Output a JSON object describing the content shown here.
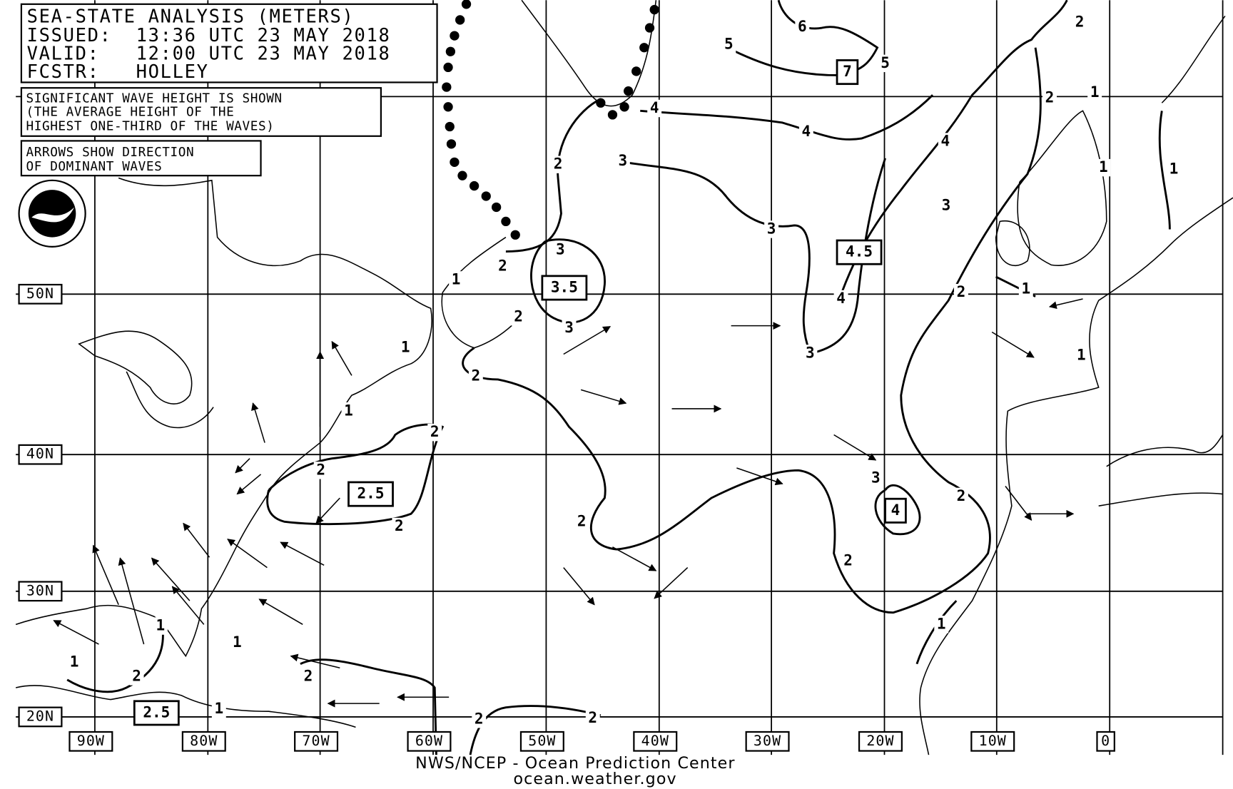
{
  "header": {
    "lines": [
      "SEA-STATE ANALYSIS (METERS)",
      "ISSUED:  13:36 UTC 23 MAY 2018",
      "VALID:   12:00 UTC 23 MAY 2018",
      "FCSTR:   HOLLEY"
    ]
  },
  "notes": {
    "wave_height": [
      "SIGNIFICANT WAVE HEIGHT IS SHOWN",
      "(THE AVERAGE HEIGHT OF THE",
      "HIGHEST ONE-THIRD OF THE WAVES)"
    ],
    "arrows": [
      "ARROWS SHOW DIRECTION",
      "OF DOMINANT WAVES"
    ]
  },
  "latitude_labels": [
    "50N",
    "40N",
    "30N",
    "20N"
  ],
  "longitude_labels": [
    "90W",
    "80W",
    "70W",
    "60W",
    "50W",
    "40W",
    "30W",
    "20W",
    "10W",
    "0"
  ],
  "contour_labels": [
    2,
    1,
    2,
    1,
    1,
    6,
    5,
    5,
    4,
    4,
    4,
    3,
    2,
    3,
    3,
    3,
    2,
    1,
    2,
    3,
    4,
    2,
    1,
    3,
    1,
    1,
    1,
    2,
    2,
    2,
    3,
    2,
    2,
    2,
    2,
    1,
    1,
    1,
    1,
    2,
    2,
    1,
    2,
    2
  ],
  "boxed_values": [
    7,
    4.5,
    3.5,
    2.5,
    4,
    2.5
  ],
  "footer": [
    "NWS/NCEP - Ocean Prediction Center",
    "ocean.weather.gov"
  ]
}
